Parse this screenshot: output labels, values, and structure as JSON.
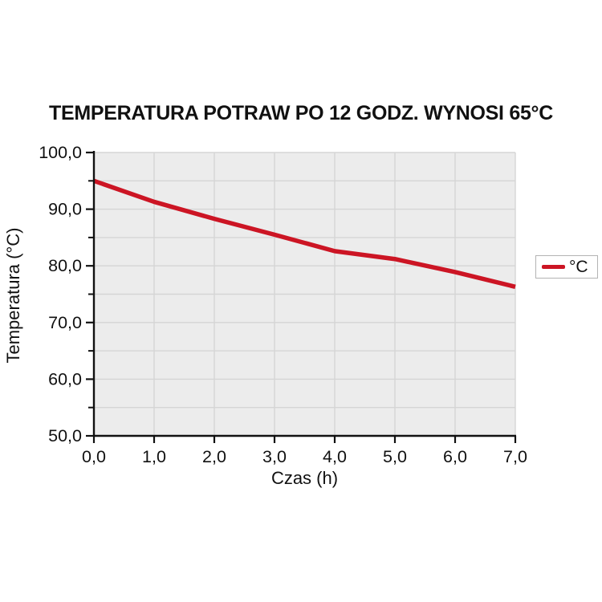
{
  "page": {
    "background": "#ffffff"
  },
  "chart_data": {
    "type": "line",
    "title": "TEMPERATURA POTRAW PO 12 GODZ. WYNOSI 65°C",
    "xlabel": "Czas (h)",
    "ylabel": "Temperatura (°C)",
    "x": [
      0.0,
      1.0,
      2.0,
      3.0,
      4.0,
      5.0,
      6.0,
      7.0
    ],
    "series": [
      {
        "name": "°C",
        "color": "#cc1524",
        "values": [
          95.0,
          91.3,
          88.3,
          85.5,
          82.6,
          81.2,
          78.9,
          76.3
        ]
      }
    ],
    "xlim": [
      0.0,
      7.0
    ],
    "ylim": [
      50.0,
      100.0
    ],
    "x_tick_values": [
      0,
      1,
      2,
      3,
      4,
      5,
      6,
      7
    ],
    "x_tick_labels": [
      "0,0",
      "1,0",
      "2,0",
      "3,0",
      "4,0",
      "5,0",
      "6,0",
      "7,0"
    ],
    "y_tick_values": [
      50,
      60,
      70,
      80,
      90,
      100
    ],
    "y_tick_labels": [
      "50,0",
      "60,0",
      "70,0",
      "80,0",
      "90,0",
      "100,0"
    ],
    "y_minor_tick_values": [
      55,
      65,
      75,
      85,
      95
    ],
    "grid": {
      "vertical_step_hours": 1,
      "horizontal_step_units": 5,
      "grid_on": true
    },
    "legend": {
      "position": "right",
      "label": "°C"
    },
    "colors": {
      "plot_background": "#ececec",
      "gridline": "#d5d5d5",
      "axis": "#111111",
      "tick_text": "#111111"
    }
  }
}
